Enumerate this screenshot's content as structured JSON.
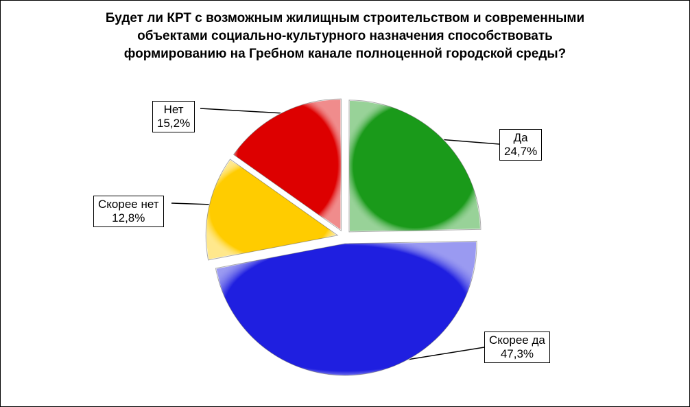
{
  "chart_data": {
    "type": "pie",
    "title": "Будет ли КРТ с возможным жилищным строительством и современными\nобъектами социально-культурного назначения способствовать\nформированию на Гребном канале полноценной городской среды?",
    "slices": [
      {
        "label": "Да",
        "value": 24.7,
        "value_text": "24,7%",
        "color": "#1a9a1a"
      },
      {
        "label": "Скорее да",
        "value": 47.3,
        "value_text": "47,3%",
        "color": "#1f1fe0"
      },
      {
        "label": "Скорее нет",
        "value": 12.8,
        "value_text": "12,8%",
        "color": "#ffcc00"
      },
      {
        "label": "Нет",
        "value": 15.2,
        "value_text": "15,2%",
        "color": "#dd0000"
      }
    ],
    "legend": "none",
    "exploded": true
  }
}
